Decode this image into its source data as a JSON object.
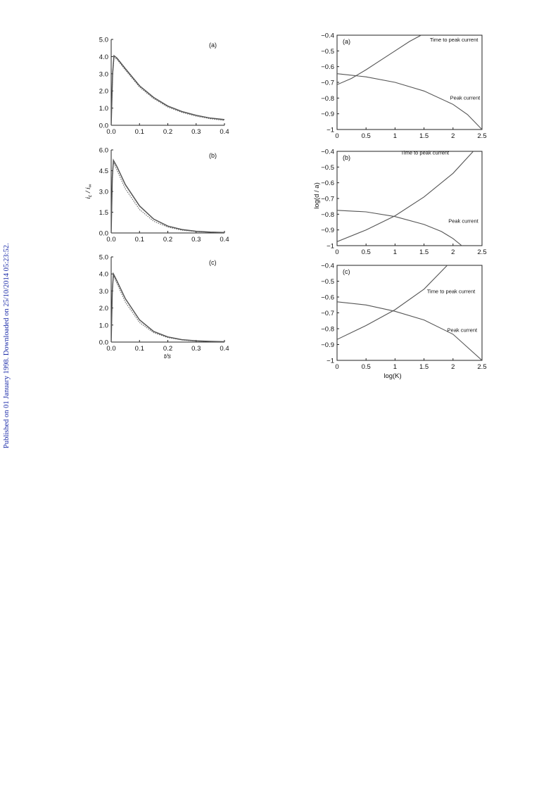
{
  "publication_note": "Published on 01 January 1998. Downloaded on 25/10/2014 05:23:52.",
  "colors": {
    "curve": "#555555",
    "axis": "#222222",
    "sidebar_text": "#1a2aa8"
  },
  "left_column": {
    "ylabel": "i_c / i_∞",
    "xlabel": "t/s"
  },
  "right_column": {
    "ylabel": "log(d / a)",
    "xlabel": "log(K)"
  },
  "chart_data": [
    {
      "id": "left-a",
      "type": "line",
      "panel_label": "(a)",
      "xlim": [
        0,
        0.4
      ],
      "ylim": [
        0,
        5
      ],
      "xticks": [
        "0.0",
        "0.1",
        "0.2",
        "0.3",
        "0.4"
      ],
      "yticks": [
        "0.0",
        "1.0",
        "2.0",
        "3.0",
        "4.0",
        "5.0"
      ],
      "series": [
        {
          "style": "solid",
          "x": [
            0,
            0.005,
            0.01,
            0.02,
            0.05,
            0.1,
            0.15,
            0.2,
            0.25,
            0.3,
            0.35,
            0.4
          ],
          "y": [
            0,
            3.0,
            4.05,
            3.92,
            3.3,
            2.3,
            1.62,
            1.12,
            0.8,
            0.58,
            0.42,
            0.33
          ]
        },
        {
          "style": "dotted",
          "x": [
            0,
            0.005,
            0.01,
            0.02,
            0.05,
            0.1,
            0.15,
            0.2,
            0.25,
            0.3,
            0.35,
            0.4
          ],
          "y": [
            0,
            2.8,
            3.95,
            3.85,
            3.22,
            2.22,
            1.55,
            1.06,
            0.75,
            0.53,
            0.38,
            0.28
          ]
        }
      ]
    },
    {
      "id": "left-b",
      "type": "line",
      "panel_label": "(b)",
      "xlim": [
        0,
        0.4
      ],
      "ylim": [
        0,
        6
      ],
      "xticks": [
        "0.0",
        "0.1",
        "0.2",
        "0.3",
        "0.4"
      ],
      "yticks": [
        "0.0",
        "1.5",
        "3.0",
        "4.5",
        "6.0"
      ],
      "series": [
        {
          "style": "solid",
          "x": [
            0,
            0.004,
            0.008,
            0.02,
            0.05,
            0.1,
            0.15,
            0.2,
            0.25,
            0.3,
            0.35,
            0.4
          ],
          "y": [
            0,
            4.0,
            5.25,
            4.8,
            3.5,
            1.95,
            1.0,
            0.5,
            0.25,
            0.12,
            0.06,
            0.03
          ]
        },
        {
          "style": "dotted",
          "x": [
            0,
            0.004,
            0.008,
            0.02,
            0.05,
            0.1,
            0.15,
            0.2,
            0.25,
            0.3,
            0.35,
            0.4
          ],
          "y": [
            0,
            3.8,
            5.1,
            4.55,
            3.2,
            1.7,
            0.85,
            0.42,
            0.2,
            0.1,
            0.05,
            0.02
          ]
        }
      ]
    },
    {
      "id": "left-c",
      "type": "line",
      "panel_label": "(c)",
      "xlim": [
        0,
        0.4
      ],
      "ylim": [
        0,
        5
      ],
      "xticks": [
        "0.0",
        "0.1",
        "0.2",
        "0.3",
        "0.4"
      ],
      "yticks": [
        "0.0",
        "1.0",
        "2.0",
        "3.0",
        "4.0",
        "5.0"
      ],
      "series": [
        {
          "style": "solid",
          "x": [
            0,
            0.004,
            0.008,
            0.02,
            0.05,
            0.1,
            0.15,
            0.2,
            0.25,
            0.3,
            0.35,
            0.4
          ],
          "y": [
            0,
            3.0,
            4.0,
            3.6,
            2.55,
            1.3,
            0.62,
            0.3,
            0.14,
            0.07,
            0.04,
            0.02
          ]
        },
        {
          "style": "dotted",
          "x": [
            0,
            0.004,
            0.008,
            0.02,
            0.05,
            0.1,
            0.15,
            0.2,
            0.25,
            0.3,
            0.35,
            0.4
          ],
          "y": [
            0,
            2.9,
            3.9,
            3.45,
            2.35,
            1.15,
            0.55,
            0.26,
            0.12,
            0.06,
            0.03,
            0.01
          ]
        }
      ]
    },
    {
      "id": "right-a",
      "type": "line",
      "panel_label": "(a)",
      "xlim": [
        0,
        2.5
      ],
      "ylim": [
        -1,
        -0.4
      ],
      "xticks": [
        "0",
        "0.5",
        "1",
        "1.5",
        "2",
        "2.5"
      ],
      "yticks": [
        "−1",
        "−0.9",
        "−0.8",
        "−0.7",
        "−0.6",
        "−0.5",
        "−0.4"
      ],
      "series": [
        {
          "name": "Time to peak current",
          "x": [
            0,
            0.25,
            0.5,
            0.75,
            1.0,
            1.25,
            1.45
          ],
          "y": [
            -0.715,
            -0.675,
            -0.62,
            -0.56,
            -0.5,
            -0.44,
            -0.4
          ]
        },
        {
          "name": "Peak current",
          "x": [
            0,
            0.5,
            1.0,
            1.5,
            2.0,
            2.25,
            2.5
          ],
          "y": [
            -0.645,
            -0.665,
            -0.7,
            -0.755,
            -0.84,
            -0.905,
            -1.0
          ]
        }
      ],
      "annotations": [
        {
          "text": "Time to peak current",
          "x": 1.6,
          "y": -0.44
        },
        {
          "text": "Peak current",
          "x": 1.95,
          "y": -0.81
        }
      ]
    },
    {
      "id": "right-b",
      "type": "line",
      "panel_label": "(b)",
      "xlim": [
        0,
        2.5
      ],
      "ylim": [
        -1,
        -0.4
      ],
      "xticks": [
        "0",
        "0.5",
        "1",
        "1.5",
        "2",
        "2.5"
      ],
      "yticks": [
        "−1",
        "−0.9",
        "−0.8",
        "−0.7",
        "−0.6",
        "−0.5",
        "−0.4"
      ],
      "series": [
        {
          "name": "Time to peak current",
          "x": [
            0,
            0.5,
            1.0,
            1.5,
            2.0,
            2.25,
            2.35
          ],
          "y": [
            -0.975,
            -0.9,
            -0.81,
            -0.69,
            -0.54,
            -0.44,
            -0.4
          ]
        },
        {
          "name": "Peak current",
          "x": [
            0,
            0.5,
            1.0,
            1.5,
            1.8,
            2.0,
            2.15
          ],
          "y": [
            -0.775,
            -0.785,
            -0.815,
            -0.865,
            -0.91,
            -0.955,
            -1.0
          ]
        }
      ],
      "annotations": [
        {
          "text": "Time to peak current",
          "x": 1.1,
          "y": -0.42
        },
        {
          "text": "Peak current",
          "x": 1.92,
          "y": -0.855
        }
      ]
    },
    {
      "id": "right-c",
      "type": "line",
      "panel_label": "(c)",
      "xlim": [
        0,
        2.5
      ],
      "ylim": [
        -1,
        -0.4
      ],
      "xticks": [
        "0",
        "0.5",
        "1",
        "1.5",
        "2",
        "2.5"
      ],
      "yticks": [
        "−1",
        "−0.9",
        "−0.8",
        "−0.7",
        "−0.6",
        "−0.5",
        "−0.4"
      ],
      "series": [
        {
          "name": "Time to peak current",
          "x": [
            0,
            0.5,
            1.0,
            1.5,
            1.9
          ],
          "y": [
            -0.868,
            -0.78,
            -0.68,
            -0.55,
            -0.4
          ]
        },
        {
          "name": "Peak current",
          "x": [
            0,
            0.5,
            1.0,
            1.5,
            2.0,
            2.5
          ],
          "y": [
            -0.63,
            -0.65,
            -0.69,
            -0.745,
            -0.835,
            -1.0
          ]
        }
      ],
      "annotations": [
        {
          "text": "Time to peak current",
          "x": 1.55,
          "y": -0.575
        },
        {
          "text": "Peak current",
          "x": 1.9,
          "y": -0.82
        }
      ]
    }
  ]
}
